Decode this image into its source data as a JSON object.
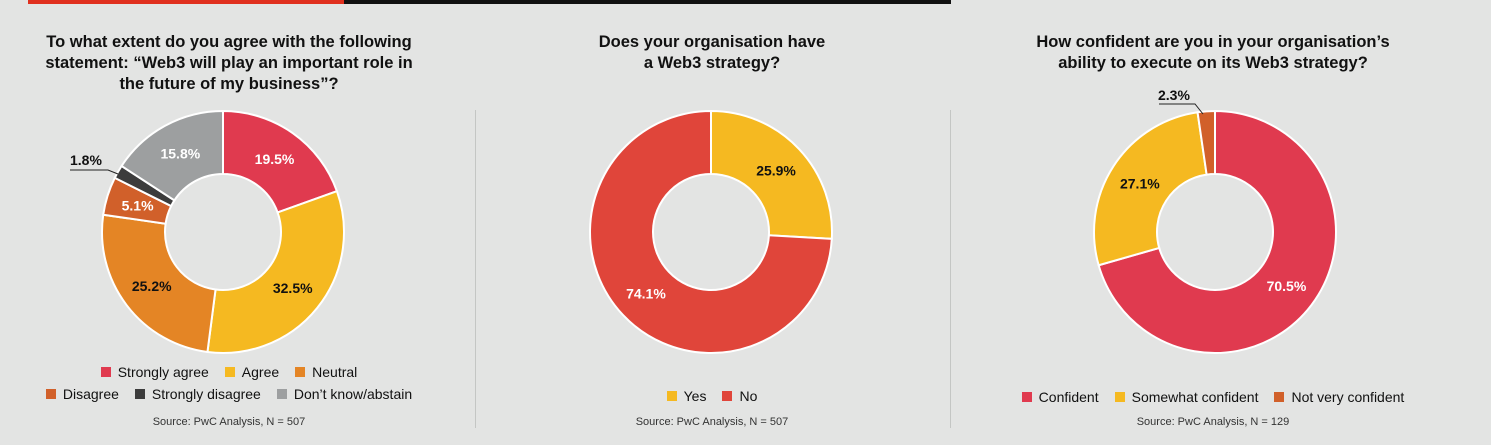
{
  "colors": {
    "strongly_agree": "#e03a4f",
    "agree": "#f5b921",
    "neutral": "#e48525",
    "disagree": "#d1602a",
    "strongly_disagree": "#3c3c3c",
    "dont_know": "#9d9fa0",
    "yes": "#f5b921",
    "no": "#e0453a",
    "confident": "#e03a4f",
    "somewhat_confident": "#f5b921",
    "not_very_confident": "#d1602a"
  },
  "chart_data": [
    {
      "type": "pie",
      "title_lines": [
        "To what extent do you agree with the following",
        "statement: “Web3 will play an important role in",
        "the future of my business”?"
      ],
      "categories": [
        "Strongly agree",
        "Agree",
        "Neutral",
        "Disagree",
        "Strongly disagree",
        "Don’t know/abstain"
      ],
      "values": [
        19.5,
        32.5,
        25.2,
        5.1,
        1.8,
        15.8
      ],
      "labels": [
        "19.5%",
        "32.5%",
        "25.2%",
        "5.1%",
        "1.8%",
        "15.8%"
      ],
      "legend_rows": [
        [
          "Strongly agree",
          "Agree",
          "Neutral"
        ],
        [
          "Disagree",
          "Strongly disagree",
          "Don’t know/abstain"
        ]
      ],
      "source": "Source: PwC Analysis, N = 507"
    },
    {
      "type": "pie",
      "title_lines": [
        "Does your organisation have",
        "a Web3 strategy?"
      ],
      "categories": [
        "Yes",
        "No"
      ],
      "values": [
        25.9,
        74.1
      ],
      "labels": [
        "25.9%",
        "74.1%"
      ],
      "legend_rows": [
        [
          "Yes",
          "No"
        ]
      ],
      "source": "Source: PwC Analysis, N = 507"
    },
    {
      "type": "pie",
      "title_lines": [
        "How confident are you in your organisation’s",
        "ability to execute on its Web3 strategy?"
      ],
      "categories": [
        "Confident",
        "Somewhat confident",
        "Not very confident"
      ],
      "values": [
        70.5,
        27.1,
        2.3
      ],
      "labels": [
        "70.5%",
        "27.1%",
        "2.3%"
      ],
      "legend_rows": [
        [
          "Confident",
          "Somewhat confident",
          "Not very confident"
        ]
      ],
      "source": "Source: PwC Analysis, N = 129"
    }
  ]
}
